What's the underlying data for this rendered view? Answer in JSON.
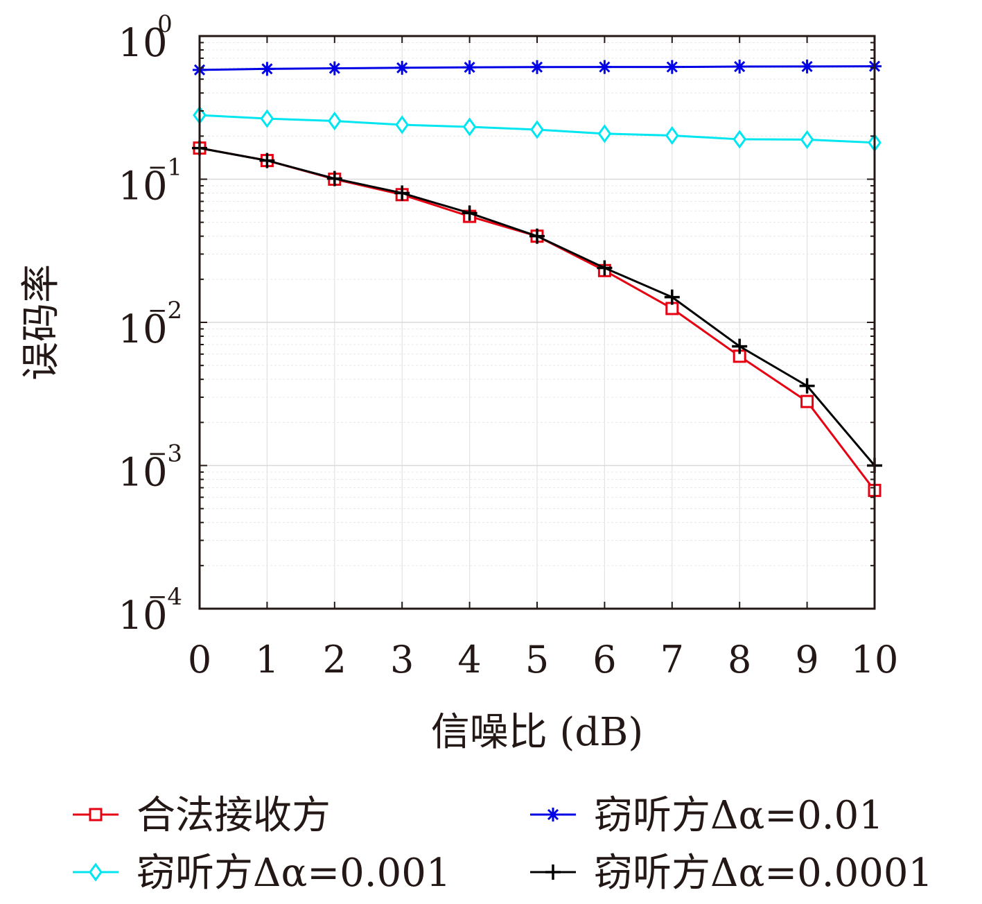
{
  "chart_data": {
    "type": "line",
    "xlabel": "信噪比 (dB)",
    "ylabel": "误码率",
    "x": [
      0,
      1,
      2,
      3,
      4,
      5,
      6,
      7,
      8,
      9,
      10
    ],
    "xlim": [
      0,
      10
    ],
    "ylim": [
      0.0001,
      1
    ],
    "yscale": "log",
    "grid": true,
    "legend_position": "bottom",
    "x_tick_labels": [
      "0",
      "1",
      "2",
      "3",
      "4",
      "5",
      "6",
      "7",
      "8",
      "9",
      "10"
    ],
    "y_ticks": [
      {
        "value": 1,
        "base": "10",
        "exp": "0"
      },
      {
        "value": 0.1,
        "base": "10",
        "exp": "−1"
      },
      {
        "value": 0.01,
        "base": "10",
        "exp": "−2"
      },
      {
        "value": 0.001,
        "base": "10",
        "exp": "−3"
      },
      {
        "value": 0.0001,
        "base": "10",
        "exp": "−4"
      }
    ],
    "series": [
      {
        "name": "合法接收方",
        "color": "#e60012",
        "marker": "square",
        "values": [
          0.165,
          0.135,
          0.1,
          0.078,
          0.055,
          0.04,
          0.023,
          0.0125,
          0.0058,
          0.0028,
          0.00067
        ]
      },
      {
        "name": "窃听方Δα=0.01",
        "color": "#0000e6",
        "marker": "asterisk",
        "values": [
          0.58,
          0.59,
          0.595,
          0.6,
          0.605,
          0.607,
          0.608,
          0.608,
          0.612,
          0.613,
          0.615
        ]
      },
      {
        "name": "窃听方Δα=0.001",
        "color": "#00e6f0",
        "marker": "diamond",
        "values": [
          0.28,
          0.265,
          0.255,
          0.24,
          0.232,
          0.222,
          0.208,
          0.202,
          0.19,
          0.189,
          0.18
        ]
      },
      {
        "name": "窃听方Δα=0.0001",
        "color": "#000000",
        "marker": "plus",
        "values": [
          0.165,
          0.135,
          0.101,
          0.08,
          0.058,
          0.04,
          0.024,
          0.015,
          0.0068,
          0.0036,
          0.001
        ]
      }
    ]
  }
}
